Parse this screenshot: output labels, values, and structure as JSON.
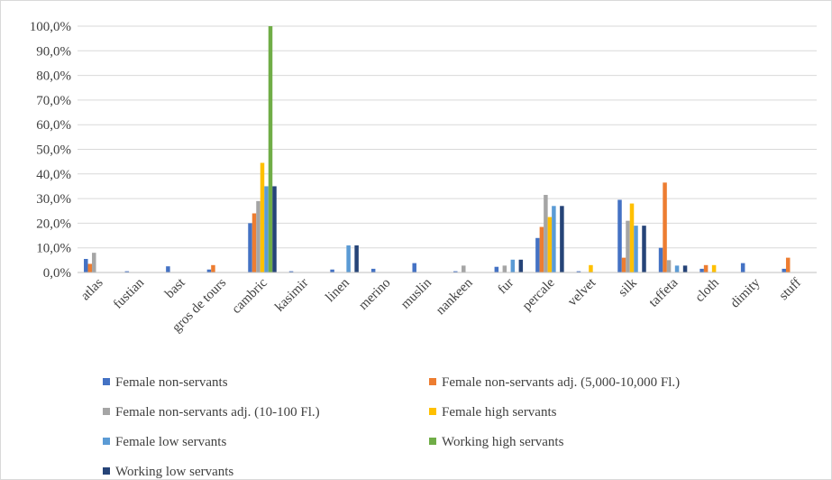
{
  "chart_data": {
    "type": "bar",
    "categories": [
      "atlas",
      "fustian",
      "bast",
      "gros de tours",
      "cambric",
      "kasimir",
      "linen",
      "merino",
      "muslin",
      "nankeen",
      "fur",
      "percale",
      "velvet",
      "silk",
      "taffeta",
      "cloth",
      "dimity",
      "stuff"
    ],
    "y_ticks": [
      "0,0%",
      "10,0%",
      "20,0%",
      "30,0%",
      "40,0%",
      "50,0%",
      "60,0%",
      "70,0%",
      "80,0%",
      "90,0%",
      "100,0%"
    ],
    "ylim": [
      0,
      100
    ],
    "grid": true,
    "legend_position": "bottom",
    "series": [
      {
        "name": "Female non-servants",
        "color": "#4472c4",
        "values": [
          5.5,
          0.5,
          2.5,
          1.2,
          20,
          0.5,
          1.2,
          1.5,
          3.8,
          0.5,
          2.3,
          14,
          0.5,
          29.5,
          10,
          1.5,
          3.8,
          1.5
        ]
      },
      {
        "name": "Female non-servants adj. (5,000-10,000 Fl.)",
        "color": "#ed7d31",
        "values": [
          3.5,
          0,
          0,
          3,
          24,
          0,
          0,
          0,
          0,
          0,
          0,
          18.5,
          0,
          6,
          36.5,
          3,
          0,
          6
        ]
      },
      {
        "name": "Female non-servants adj. (10-100 Fl.)",
        "color": "#a5a5a5",
        "values": [
          8,
          0,
          0,
          0,
          29,
          0,
          0,
          0,
          0,
          2.8,
          2.8,
          31.5,
          0,
          21,
          5,
          0,
          0,
          0
        ]
      },
      {
        "name": "Female high servants",
        "color": "#ffc000",
        "values": [
          0,
          0,
          0,
          0,
          44.5,
          0,
          0,
          0,
          0,
          0,
          0,
          22.5,
          3,
          28,
          0,
          3,
          0,
          0
        ]
      },
      {
        "name": "Female low servants",
        "color": "#5b9bd5",
        "values": [
          0,
          0,
          0,
          0,
          35,
          0,
          11,
          0,
          0,
          0,
          5.2,
          27,
          0,
          19,
          2.8,
          0,
          0,
          0
        ]
      },
      {
        "name": "Working high servants",
        "color": "#70ad47",
        "values": [
          0,
          0,
          0,
          0,
          100,
          0,
          0,
          0,
          0,
          0,
          0,
          0,
          0,
          0,
          0,
          0,
          0,
          0
        ]
      },
      {
        "name": "Working low servants",
        "color": "#264478",
        "values": [
          0,
          0,
          0,
          0,
          35,
          0,
          11,
          0,
          0,
          0,
          5.2,
          27,
          0,
          19,
          2.8,
          0,
          0,
          0
        ]
      }
    ]
  }
}
